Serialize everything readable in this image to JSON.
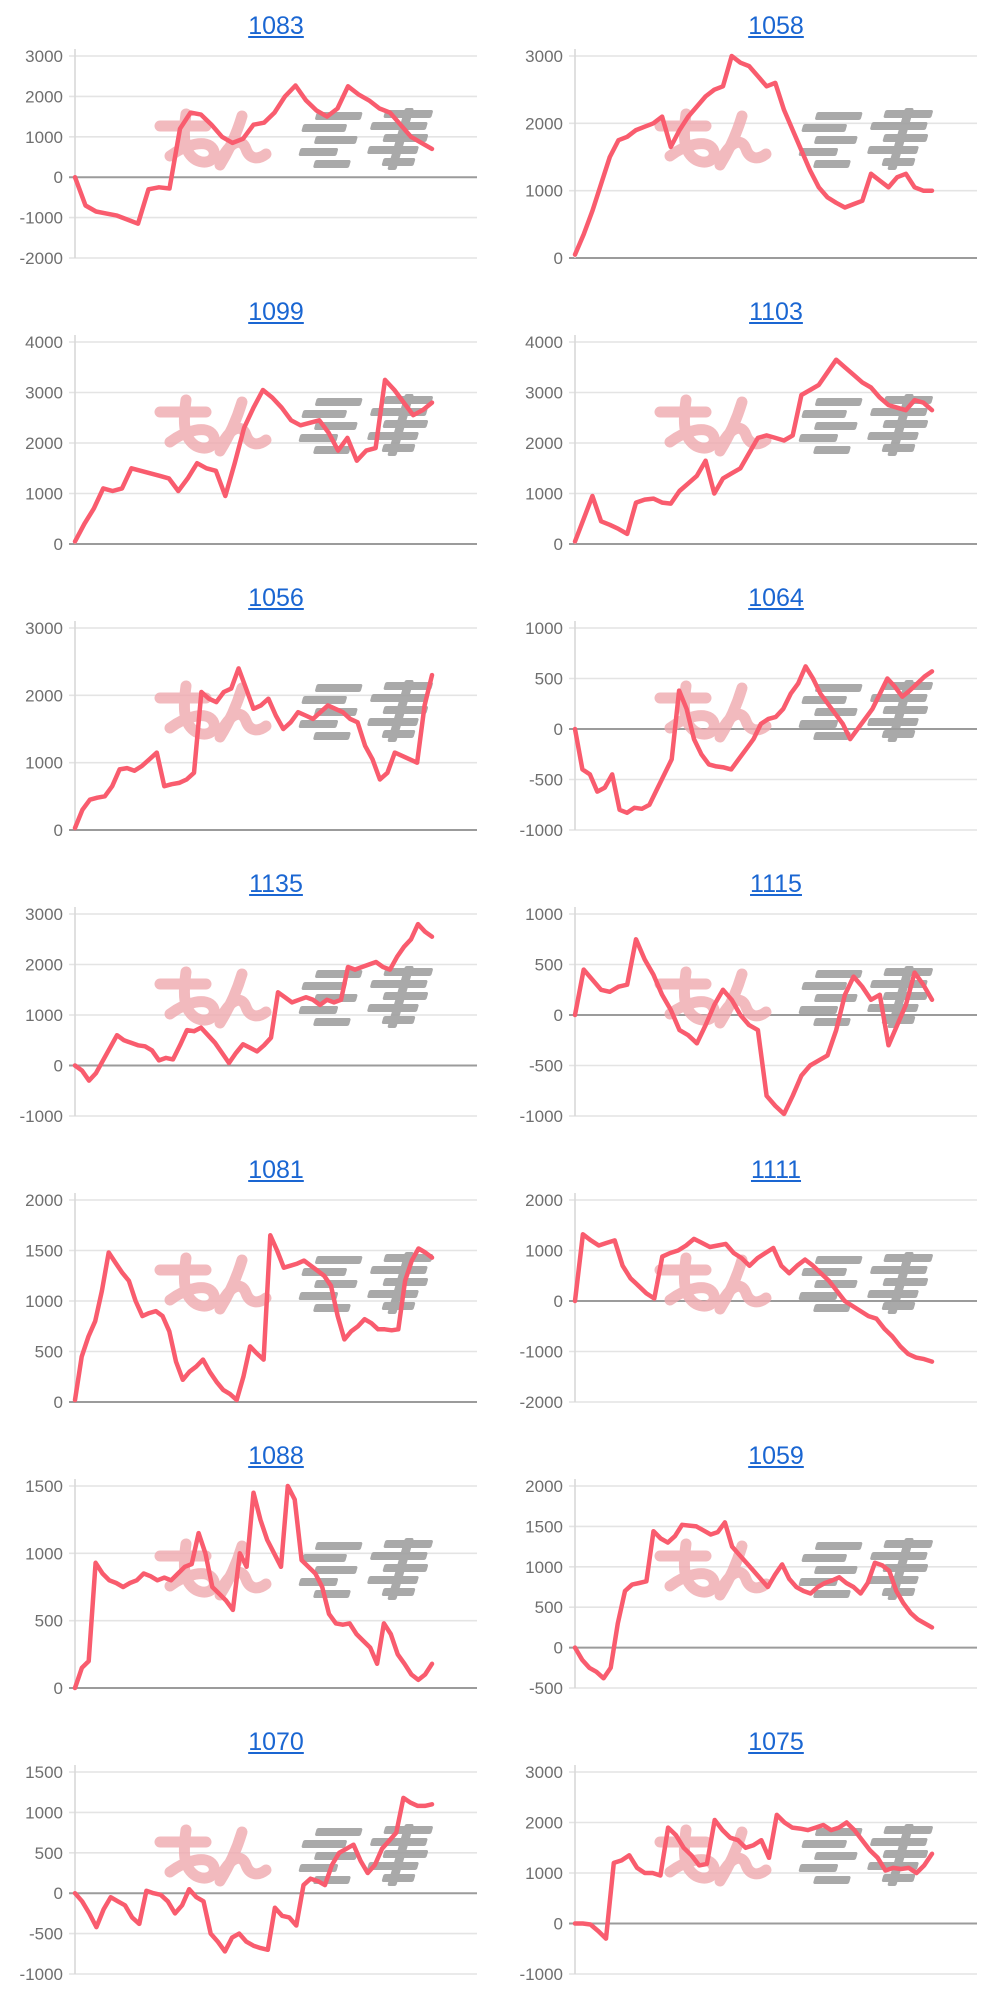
{
  "page": {
    "background": "#ffffff"
  },
  "watermark": {
    "pink_text": "みん",
    "gray_text": "パチ"
  },
  "colors": {
    "line": "#f95c6e",
    "title_link": "#1a66d2",
    "tick_label": "#6f6f6f",
    "grid": "#e4e4e4",
    "zero_line": "#9b9b9b",
    "axis": "#d9d9d9",
    "watermark_pink": "#f0a9af",
    "watermark_gray": "#9e9e9e"
  },
  "chart_data": [
    {
      "type": "line",
      "title": "1083",
      "ylim": [
        -2000,
        3000
      ],
      "yticks": [
        3000,
        2000,
        1000,
        0,
        -1000,
        -2000
      ],
      "values": [
        0,
        -700,
        -850,
        -900,
        -950,
        -1050,
        -1150,
        -300,
        -250,
        -280,
        1200,
        1600,
        1550,
        1300,
        1000,
        850,
        950,
        1300,
        1350,
        1600,
        2000,
        2270,
        1900,
        1650,
        1500,
        1700,
        2250,
        2050,
        1900,
        1700,
        1600,
        1300,
        1000,
        850,
        700
      ]
    },
    {
      "type": "line",
      "title": "1058",
      "ylim": [
        0,
        3000
      ],
      "yticks": [
        3000,
        2000,
        1000,
        0
      ],
      "values": [
        50,
        350,
        700,
        1100,
        1500,
        1750,
        1800,
        1900,
        1950,
        2000,
        2100,
        1650,
        1900,
        2100,
        2250,
        2400,
        2500,
        2550,
        3000,
        2900,
        2850,
        2700,
        2550,
        2600,
        2200,
        1900,
        1600,
        1300,
        1050,
        900,
        820,
        750,
        800,
        850,
        1250,
        1150,
        1050,
        1200,
        1250,
        1050,
        1000,
        1000
      ]
    },
    {
      "type": "line",
      "title": "1099",
      "ylim": [
        0,
        4000
      ],
      "yticks": [
        4000,
        3000,
        2000,
        1000,
        0
      ],
      "values": [
        50,
        400,
        700,
        1100,
        1050,
        1100,
        1500,
        1450,
        1400,
        1350,
        1300,
        1050,
        1300,
        1600,
        1500,
        1450,
        950,
        1600,
        2300,
        2700,
        3050,
        2900,
        2700,
        2450,
        2350,
        2400,
        2450,
        2200,
        1850,
        2100,
        1650,
        1850,
        1900,
        3250,
        3050,
        2800,
        2550,
        2650,
        2800
      ]
    },
    {
      "type": "line",
      "title": "1103",
      "ylim": [
        0,
        4000
      ],
      "yticks": [
        4000,
        3000,
        2000,
        1000,
        0
      ],
      "values": [
        50,
        500,
        950,
        450,
        380,
        300,
        200,
        820,
        880,
        900,
        820,
        800,
        1050,
        1200,
        1350,
        1650,
        1000,
        1300,
        1400,
        1500,
        1800,
        2100,
        2150,
        2100,
        2050,
        2150,
        2950,
        3050,
        3150,
        3400,
        3650,
        3500,
        3350,
        3200,
        3100,
        2900,
        2750,
        2700,
        2650,
        2850,
        2800,
        2650
      ]
    },
    {
      "type": "line",
      "title": "1056",
      "ylim": [
        0,
        3000
      ],
      "yticks": [
        3000,
        2000,
        1000,
        0
      ],
      "values": [
        30,
        300,
        450,
        480,
        500,
        650,
        900,
        920,
        880,
        950,
        1050,
        1150,
        650,
        680,
        700,
        750,
        850,
        2050,
        1950,
        1900,
        2050,
        2100,
        2400,
        2100,
        1800,
        1850,
        1950,
        1700,
        1500,
        1600,
        1750,
        1700,
        1650,
        1750,
        1850,
        1800,
        1750,
        1650,
        1600,
        1250,
        1050,
        750,
        850,
        1150,
        1100,
        1050,
        1000,
        1850,
        2300
      ]
    },
    {
      "type": "line",
      "title": "1064",
      "ylim": [
        -1000,
        1000
      ],
      "yticks": [
        1000,
        500,
        0,
        -500,
        -1000
      ],
      "values": [
        0,
        -400,
        -450,
        -620,
        -580,
        -450,
        -800,
        -830,
        -780,
        -790,
        -750,
        -600,
        -450,
        -300,
        380,
        200,
        -100,
        -250,
        -350,
        -370,
        -380,
        -400,
        -300,
        -200,
        -100,
        50,
        100,
        120,
        200,
        350,
        450,
        620,
        500,
        350,
        250,
        150,
        50,
        -100,
        0,
        100,
        200,
        350,
        500,
        420,
        320,
        380,
        450,
        520,
        570
      ]
    },
    {
      "type": "line",
      "title": "1135",
      "ylim": [
        -1000,
        3000
      ],
      "yticks": [
        3000,
        2000,
        1000,
        0,
        -1000
      ],
      "values": [
        0,
        -100,
        -300,
        -150,
        100,
        350,
        600,
        500,
        450,
        400,
        380,
        300,
        100,
        150,
        120,
        400,
        700,
        680,
        750,
        600,
        450,
        250,
        50,
        250,
        420,
        350,
        280,
        400,
        550,
        1450,
        1350,
        1250,
        1300,
        1350,
        1300,
        1200,
        1300,
        1250,
        1300,
        1950,
        1900,
        1950,
        2000,
        2050,
        1950,
        1900,
        2150,
        2350,
        2500,
        2800,
        2650,
        2550
      ]
    },
    {
      "type": "line",
      "title": "1115",
      "ylim": [
        -1000,
        1000
      ],
      "yticks": [
        1000,
        500,
        0,
        -500,
        -1000
      ],
      "values": [
        0,
        450,
        350,
        250,
        230,
        280,
        300,
        750,
        550,
        400,
        200,
        50,
        -150,
        -200,
        -280,
        -100,
        100,
        250,
        150,
        0,
        -100,
        -150,
        -800,
        -900,
        -980,
        -800,
        -600,
        -500,
        -450,
        -400,
        -150,
        200,
        380,
        280,
        150,
        200,
        -300,
        -100,
        100,
        420,
        300,
        150
      ]
    },
    {
      "type": "line",
      "title": "1081",
      "ylim": [
        0,
        2000
      ],
      "yticks": [
        2000,
        1500,
        1000,
        500,
        0
      ],
      "values": [
        20,
        450,
        650,
        800,
        1100,
        1480,
        1380,
        1280,
        1200,
        1000,
        850,
        880,
        900,
        850,
        700,
        400,
        220,
        300,
        350,
        420,
        300,
        200,
        120,
        80,
        20,
        250,
        550,
        480,
        420,
        1650,
        1500,
        1330,
        1350,
        1370,
        1400,
        1350,
        1300,
        1250,
        1150,
        850,
        620,
        700,
        750,
        820,
        780,
        720,
        720,
        710,
        720,
        1200,
        1400,
        1520,
        1480,
        1430
      ]
    },
    {
      "type": "line",
      "title": "1111",
      "ylim": [
        -2000,
        2000
      ],
      "yticks": [
        2000,
        1000,
        0,
        -1000,
        -2000
      ],
      "values": [
        0,
        1320,
        1200,
        1100,
        1150,
        1200,
        700,
        450,
        300,
        150,
        50,
        880,
        950,
        1000,
        1100,
        1230,
        1150,
        1070,
        1100,
        1130,
        950,
        850,
        700,
        850,
        950,
        1050,
        700,
        550,
        700,
        820,
        700,
        550,
        400,
        200,
        0,
        -100,
        -200,
        -300,
        -350,
        -550,
        -700,
        -900,
        -1050,
        -1120,
        -1150,
        -1200
      ]
    },
    {
      "type": "line",
      "title": "1088",
      "ylim": [
        0,
        1500
      ],
      "yticks": [
        1500,
        1000,
        500,
        0
      ],
      "values": [
        0,
        150,
        200,
        930,
        850,
        800,
        780,
        750,
        780,
        800,
        850,
        830,
        800,
        820,
        800,
        850,
        900,
        920,
        1150,
        1000,
        750,
        700,
        650,
        580,
        1000,
        900,
        1450,
        1250,
        1100,
        1000,
        900,
        1500,
        1400,
        950,
        900,
        850,
        750,
        550,
        480,
        470,
        480,
        400,
        350,
        300,
        180,
        480,
        400,
        250,
        180,
        100,
        60,
        100,
        180
      ]
    },
    {
      "type": "line",
      "title": "1059",
      "ylim": [
        -500,
        2000
      ],
      "yticks": [
        2000,
        1500,
        1000,
        500,
        0,
        -500
      ],
      "values": [
        0,
        -150,
        -250,
        -300,
        -380,
        -250,
        300,
        700,
        780,
        800,
        820,
        1440,
        1350,
        1300,
        1380,
        1520,
        1510,
        1500,
        1450,
        1400,
        1430,
        1550,
        1250,
        1150,
        1050,
        950,
        850,
        750,
        900,
        1030,
        850,
        750,
        700,
        670,
        750,
        800,
        830,
        870,
        800,
        750,
        670,
        800,
        1050,
        1020,
        950,
        700,
        550,
        430,
        350,
        300,
        250
      ]
    },
    {
      "type": "line",
      "title": "1070",
      "ylim": [
        -1000,
        1500
      ],
      "yticks": [
        1500,
        1000,
        500,
        0,
        -500,
        -1000
      ],
      "values": [
        0,
        -100,
        -250,
        -420,
        -200,
        -50,
        -100,
        -150,
        -300,
        -380,
        30,
        0,
        -20,
        -100,
        -250,
        -150,
        50,
        -50,
        -100,
        -500,
        -600,
        -720,
        -550,
        -500,
        -600,
        -650,
        -680,
        -700,
        -180,
        -280,
        -300,
        -400,
        100,
        180,
        150,
        100,
        350,
        500,
        550,
        600,
        400,
        250,
        350,
        550,
        650,
        750,
        1180,
        1120,
        1080,
        1080,
        1100
      ]
    },
    {
      "type": "line",
      "title": "1075",
      "ylim": [
        -1000,
        3000
      ],
      "yticks": [
        3000,
        2000,
        1000,
        0,
        -1000
      ],
      "values": [
        0,
        0,
        -20,
        -150,
        -300,
        1200,
        1250,
        1350,
        1100,
        1000,
        1000,
        950,
        1900,
        1750,
        1500,
        1350,
        1150,
        1180,
        2050,
        1850,
        1700,
        1650,
        1500,
        1550,
        1650,
        1300,
        2150,
        2000,
        1900,
        1880,
        1850,
        1900,
        1950,
        1850,
        1900,
        2000,
        1850,
        1650,
        1450,
        1300,
        1050,
        1100,
        1080,
        1100,
        1000,
        1150,
        1380
      ]
    }
  ]
}
